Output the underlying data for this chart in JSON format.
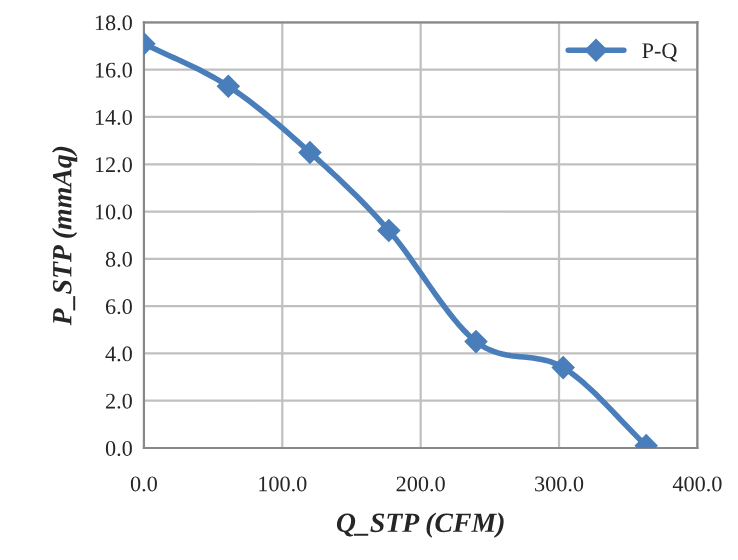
{
  "chart_data": {
    "type": "line",
    "xlabel": "Q_STP (CFM)",
    "ylabel": "P_STP (mmAq)",
    "x": [
      0,
      61,
      120,
      177,
      240,
      303,
      363
    ],
    "series": [
      {
        "name": "P-Q",
        "color": "#4a7ebb",
        "values": [
          17.1,
          15.3,
          12.5,
          9.2,
          4.5,
          3.4,
          0.1
        ]
      }
    ],
    "xlim": [
      0,
      400
    ],
    "xticks": [
      {
        "value": 0,
        "label": "0.0"
      },
      {
        "value": 100,
        "label": "100.0"
      },
      {
        "value": 200,
        "label": "200.0"
      },
      {
        "value": 300,
        "label": "300.0"
      },
      {
        "value": 400,
        "label": "400.0"
      }
    ],
    "ylim": [
      0,
      18
    ],
    "yticks": [
      {
        "value": 0,
        "label": "0.0"
      },
      {
        "value": 2,
        "label": "2.0"
      },
      {
        "value": 4,
        "label": "4.0"
      },
      {
        "value": 6,
        "label": "6.0"
      },
      {
        "value": 8,
        "label": "8.0"
      },
      {
        "value": 10,
        "label": "10.0"
      },
      {
        "value": 12,
        "label": "12.0"
      },
      {
        "value": 14,
        "label": "14.0"
      },
      {
        "value": 16,
        "label": "16.0"
      },
      {
        "value": 18,
        "label": "18.0"
      }
    ],
    "grid": true,
    "legend": "top right",
    "marker": "diamond",
    "line_style": "solid"
  }
}
